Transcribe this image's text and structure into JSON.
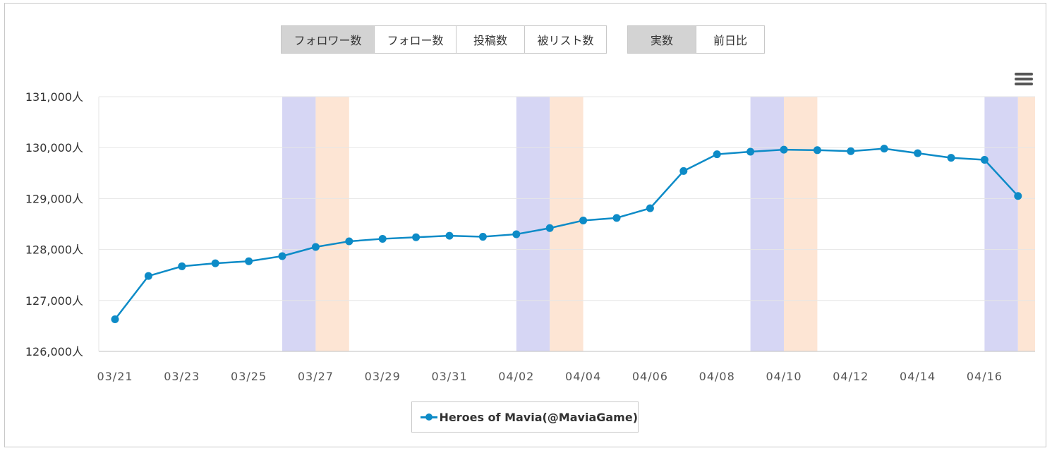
{
  "toolbar": {
    "metric_tabs": [
      {
        "label": "フォロワー数",
        "active": true
      },
      {
        "label": "フォロー数",
        "active": false
      },
      {
        "label": "投稿数",
        "active": false
      },
      {
        "label": "被リスト数",
        "active": false
      }
    ],
    "mode_tabs": [
      {
        "label": "実数",
        "active": true
      },
      {
        "label": "前日比",
        "active": false
      }
    ]
  },
  "menu_icon": "hamburger-menu-icon",
  "colors": {
    "series": "#0d8bc7",
    "saturday_band": "#d6d6f4",
    "sunday_band": "#fde5d4",
    "grid": "#e6e6e6"
  },
  "chart_data": {
    "type": "line",
    "unit_suffix": "人",
    "x": [
      "03/21",
      "03/22",
      "03/23",
      "03/24",
      "03/25",
      "03/26",
      "03/27",
      "03/28",
      "03/29",
      "03/30",
      "03/31",
      "04/01",
      "04/02",
      "04/03",
      "04/04",
      "04/05",
      "04/06",
      "04/07",
      "04/08",
      "04/09",
      "04/10",
      "04/11",
      "04/12",
      "04/13",
      "04/14",
      "04/15",
      "04/16",
      "04/17"
    ],
    "x_tick_labels": [
      "03/21",
      "03/23",
      "03/25",
      "03/27",
      "03/29",
      "03/31",
      "04/02",
      "04/04",
      "04/06",
      "04/08",
      "04/10",
      "04/12",
      "04/14",
      "04/16"
    ],
    "y_tick_labels": [
      "126,000人",
      "127,000人",
      "128,000人",
      "129,000人",
      "130,000人",
      "131,000人"
    ],
    "ylim": [
      126000,
      131000
    ],
    "series": [
      {
        "name": "Heroes of Mavia(@MaviaGame)",
        "values": [
          126630,
          127480,
          127670,
          127730,
          127770,
          127870,
          128050,
          128160,
          128210,
          128240,
          128270,
          128250,
          128300,
          128420,
          128570,
          128620,
          128810,
          129540,
          129870,
          129920,
          129960,
          129950,
          129930,
          129980,
          129890,
          129800,
          129760,
          129050
        ]
      }
    ],
    "weekend_bands": [
      {
        "from": "03/26",
        "to": "03/27",
        "day": "saturday"
      },
      {
        "from": "03/27",
        "to": "03/28",
        "day": "sunday"
      },
      {
        "from": "04/02",
        "to": "04/03",
        "day": "saturday"
      },
      {
        "from": "04/03",
        "to": "04/04",
        "day": "sunday"
      },
      {
        "from": "04/09",
        "to": "04/10",
        "day": "saturday"
      },
      {
        "from": "04/10",
        "to": "04/11",
        "day": "sunday"
      },
      {
        "from": "04/16",
        "to": "04/17",
        "day": "saturday"
      },
      {
        "from": "04/17",
        "to": "04/18",
        "day": "sunday"
      }
    ],
    "grid": true,
    "legend_position": "bottom-center"
  }
}
